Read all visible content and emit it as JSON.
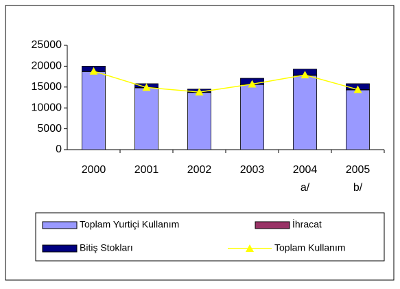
{
  "chart_data": {
    "type": "bar",
    "categories": [
      "2000",
      "2001",
      "2002",
      "2003",
      "2004\na/",
      "2005\nb/"
    ],
    "series": [
      {
        "name": "Toplam Yurtiçi Kullanım",
        "color": "#9999ff",
        "values": [
          18700,
          14800,
          13700,
          15600,
          17800,
          14300
        ]
      },
      {
        "name": "İhracat",
        "color": "#993366",
        "values": [
          100,
          100,
          100,
          100,
          100,
          100
        ]
      },
      {
        "name": "Bitiş Stokları",
        "color": "#000080",
        "values": [
          1200,
          900,
          700,
          1400,
          1400,
          1400
        ]
      },
      {
        "name": "Toplam Kullanım",
        "type": "line",
        "color": "#ffff00",
        "values": [
          18800,
          14900,
          13800,
          15700,
          17900,
          14400
        ]
      }
    ],
    "ylim": [
      0,
      25000
    ],
    "yticks": [
      0,
      5000,
      10000,
      15000,
      20000,
      25000
    ]
  }
}
